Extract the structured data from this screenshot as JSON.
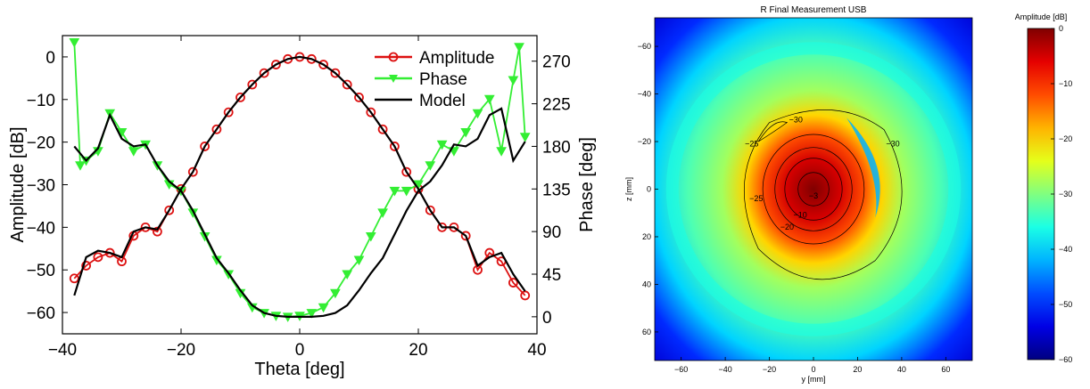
{
  "chart_data": [
    {
      "type": "line",
      "xlabel": "Theta [deg]",
      "ylabel": "Amplitude [dB]",
      "y2label": "Phase [deg]",
      "xlim": [
        -40,
        40
      ],
      "ylim": [
        -65,
        5
      ],
      "y2lim": [
        -18,
        297
      ],
      "xticks": [
        "−40",
        "−20",
        "0",
        "20",
        "40"
      ],
      "xtick_values": [
        -40,
        -20,
        0,
        20,
        40
      ],
      "yticks": [
        "0",
        "−10",
        "−20",
        "−30",
        "−40",
        "−50",
        "−60"
      ],
      "ytick_values": [
        0,
        -10,
        -20,
        -30,
        -40,
        -50,
        -60
      ],
      "y2ticks": [
        "270",
        "225",
        "180",
        "135",
        "90",
        "45",
        "0"
      ],
      "y2tick_values": [
        270,
        225,
        180,
        135,
        90,
        45,
        0
      ],
      "grid": false,
      "legend_position": "top-right",
      "series": [
        {
          "name": "Amplitude",
          "axis": "left",
          "marker": "circle",
          "color": "#dd1111",
          "x": [
            -38,
            -36,
            -34,
            -32,
            -30,
            -28,
            -26,
            -24,
            -22,
            -20,
            -18,
            -16,
            -14,
            -12,
            -10,
            -8,
            -6,
            -4,
            -2,
            0,
            2,
            4,
            6,
            8,
            10,
            12,
            14,
            16,
            18,
            20,
            22,
            24,
            26,
            28,
            30,
            32,
            34,
            36,
            38
          ],
          "y": [
            -52,
            -49,
            -47,
            -46,
            -48,
            -42,
            -40,
            -41,
            -36,
            -31,
            -27,
            -21,
            -17,
            -13,
            -9.5,
            -6.5,
            -3.8,
            -1.8,
            -0.5,
            0,
            -0.5,
            -1.8,
            -3.8,
            -6.5,
            -9.5,
            -13,
            -17,
            -21,
            -27,
            -31,
            -36,
            -40,
            -40,
            -42,
            -50,
            -46,
            -48,
            -53,
            -56
          ]
        },
        {
          "name": "Phase",
          "axis": "right",
          "marker": "triangle-down",
          "color": "#33ee33",
          "x": [
            -38,
            -37,
            -36,
            -34,
            -32,
            -30,
            -28,
            -26,
            -24,
            -22,
            -20,
            -18,
            -16,
            -14,
            -12,
            -10,
            -8,
            -6,
            -4,
            -2,
            0,
            2,
            4,
            6,
            8,
            10,
            12,
            14,
            16,
            18,
            20,
            22,
            24,
            26,
            28,
            30,
            32,
            34,
            36,
            37,
            38
          ],
          "y": [
            290,
            160,
            165,
            175,
            215,
            195,
            175,
            182,
            160,
            140,
            133,
            110,
            85,
            60,
            45,
            25,
            10,
            4,
            1,
            0,
            1,
            4,
            10,
            25,
            45,
            60,
            85,
            110,
            133,
            133,
            140,
            160,
            182,
            175,
            195,
            215,
            230,
            175,
            250,
            285,
            190
          ]
        },
        {
          "name": "Model",
          "axis": "left",
          "marker": "none",
          "color": "#000000",
          "x": [
            -38,
            -36,
            -34,
            -32,
            -30,
            -28,
            -26,
            -24,
            -22,
            -20,
            -18,
            -16,
            -14,
            -12,
            -10,
            -8,
            -6,
            -4,
            -2,
            0,
            2,
            4,
            6,
            8,
            10,
            12,
            14,
            16,
            18,
            20,
            22,
            24,
            26,
            28,
            30,
            32,
            34,
            36,
            38
          ],
          "y": [
            -56,
            -47,
            -45.5,
            -46,
            -47,
            -41,
            -40,
            -40.5,
            -36,
            -31,
            -27,
            -21,
            -17,
            -13,
            -9.5,
            -6.5,
            -3.8,
            -1.8,
            -0.5,
            0,
            -0.5,
            -1.8,
            -3.8,
            -6.5,
            -9.5,
            -13,
            -17,
            -21,
            -27,
            -31,
            -36,
            -40,
            -40,
            -42,
            -49,
            -47,
            -46,
            -51,
            -55
          ]
        },
        {
          "name": "Model (phase)",
          "axis": "right",
          "marker": "none",
          "color": "#000000",
          "x": [
            -38,
            -36,
            -34,
            -32,
            -30,
            -28,
            -26,
            -24,
            -22,
            -20,
            -18,
            -16,
            -14,
            -12,
            -10,
            -8,
            -6,
            -4,
            -2,
            0,
            2,
            4,
            6,
            8,
            10,
            12,
            14,
            16,
            18,
            20,
            22,
            24,
            26,
            28,
            30,
            32,
            34,
            36,
            38
          ],
          "y": [
            180,
            165,
            178,
            213,
            188,
            180,
            182,
            160,
            143,
            133,
            112,
            87,
            62,
            46,
            28,
            12,
            4,
            1,
            0,
            0,
            0,
            1,
            4,
            12,
            28,
            46,
            62,
            87,
            112,
            133,
            143,
            160,
            182,
            180,
            188,
            213,
            220,
            165,
            185
          ]
        }
      ]
    },
    {
      "type": "heatmap",
      "title": "R Final Measurement USB",
      "xlabel": "y [mm]",
      "ylabel": "z [mm]",
      "colorbar_label": "Amplitude [dB]",
      "xlim": [
        -72,
        72
      ],
      "ylim": [
        72,
        -72
      ],
      "xticks": [
        "−60",
        "−40",
        "−20",
        "0",
        "20",
        "40",
        "60"
      ],
      "xtick_values": [
        -60,
        -40,
        -20,
        0,
        20,
        40,
        60
      ],
      "yticks": [
        "−60",
        "−40",
        "−20",
        "0",
        "20",
        "40",
        "60"
      ],
      "ytick_values": [
        -60,
        -40,
        -20,
        0,
        20,
        40,
        60
      ],
      "colorbar_range": [
        -60,
        0
      ],
      "colorbar_ticks": [
        "0",
        "−10",
        "−20",
        "−30",
        "−40",
        "−50",
        "−60"
      ],
      "colorbar_tick_values": [
        0,
        -10,
        -20,
        -30,
        -40,
        -50,
        -60
      ],
      "contours": [
        {
          "level": -3,
          "label": "−3"
        },
        {
          "level": -10,
          "label": "−10"
        },
        {
          "level": -20,
          "label": "−20"
        },
        {
          "level": -25,
          "label": "−25"
        },
        {
          "level": -30,
          "label": "−30"
        }
      ]
    }
  ]
}
